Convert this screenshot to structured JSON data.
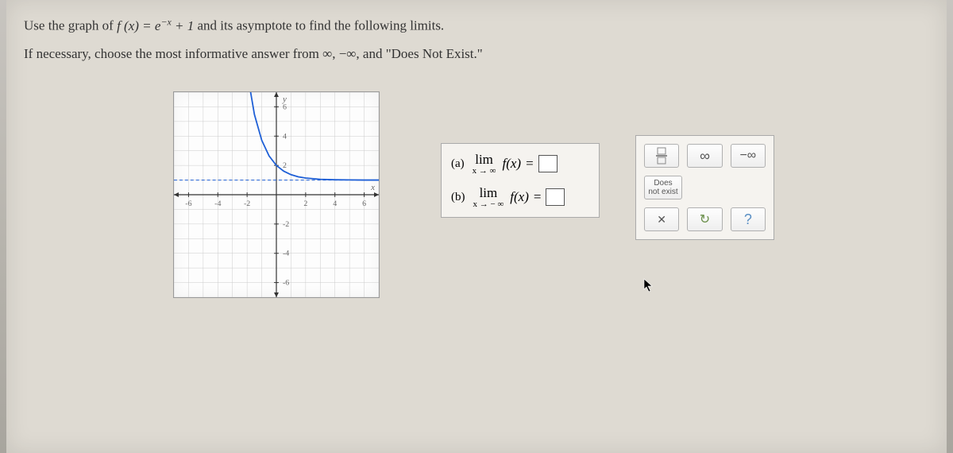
{
  "question": {
    "line1_pre": "Use the graph of ",
    "function_expr": "f (x) = e",
    "function_exp_sup": "−x",
    "function_expr_post": " + 1",
    "line1_post": " and its asymptote to find the following limits.",
    "line2": "If necessary, choose the most informative answer from ∞,  −∞,  and \"Does Not Exist.\""
  },
  "graph": {
    "type": "line",
    "xlim": [
      -7,
      7
    ],
    "ylim": [
      -7,
      7
    ],
    "xtick_step": 2,
    "ytick_step": 2,
    "x_labels": [
      "-6",
      "-4",
      "-2",
      "2",
      "4",
      "6"
    ],
    "y_labels": [
      "-6",
      "-4",
      "-2",
      "2",
      "4",
      "6"
    ],
    "axis_label_x": "x",
    "axis_label_y": "y",
    "background_color": "#fdfdfd",
    "grid_color": "#cccccc",
    "axis_color": "#333333",
    "curve_color": "#1e5fd6",
    "asymptote_color": "#1e5fd6",
    "asymptote_dash": "4 3",
    "asymptote_y": 1,
    "curve_points": [
      [
        -2.0,
        8.4
      ],
      [
        -1.5,
        5.48
      ],
      [
        -1.0,
        3.72
      ],
      [
        -0.5,
        2.65
      ],
      [
        0.0,
        2.0
      ],
      [
        0.5,
        1.61
      ],
      [
        1.0,
        1.37
      ],
      [
        1.5,
        1.22
      ],
      [
        2.0,
        1.14
      ],
      [
        3.0,
        1.05
      ],
      [
        4.0,
        1.02
      ],
      [
        5.0,
        1.01
      ],
      [
        6.0,
        1.0
      ],
      [
        7.0,
        1.0
      ]
    ],
    "label_fontsize": 10,
    "label_color": "#666666"
  },
  "limits": {
    "a": {
      "label": "(a)",
      "top": "lim",
      "bottom": "x → ∞",
      "fx": "f(x)",
      "eq": "=",
      "value": ""
    },
    "b": {
      "label": "(b)",
      "top": "lim",
      "bottom": "x → − ∞",
      "fx": "f(x)",
      "eq": "=",
      "value": ""
    }
  },
  "palette": {
    "row1": {
      "frac": "fraction",
      "inf": "∞",
      "neg_inf": "−∞"
    },
    "row2": {
      "dne": "Does\nnot exist"
    },
    "row3": {
      "close": "✕",
      "reset": "↻",
      "help": "?"
    }
  },
  "colors": {
    "page_bg": "#dedad2",
    "panel_bg": "#f5f3ef",
    "panel_border": "#aaaaaa",
    "btn_border": "#b0b0b0",
    "text": "#333333"
  }
}
